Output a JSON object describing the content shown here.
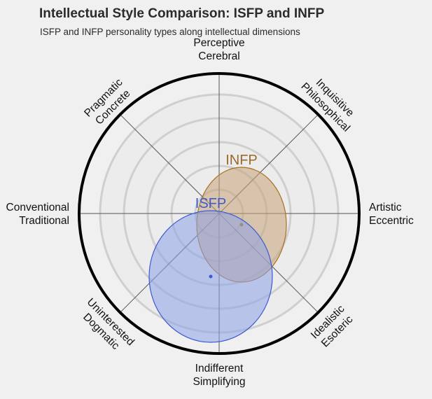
{
  "chart_data": {
    "type": "scatter",
    "title": "Intellectual Style Comparison: ISFP and INFP",
    "subtitle": "ISFP and INFP personality types along intellectual dimensions",
    "rings": 5,
    "grid": true,
    "axes": [
      {
        "angle": 90,
        "lines": [
          "Perceptive",
          "Cerebral"
        ]
      },
      {
        "angle": 45,
        "lines": [
          "Inquisitive",
          "Philosophical"
        ]
      },
      {
        "angle": 0,
        "lines": [
          "Artistic",
          "Eccentric"
        ]
      },
      {
        "angle": -45,
        "lines": [
          "Idealistic",
          "Esoteric"
        ]
      },
      {
        "angle": -90,
        "lines": [
          "Indifferent",
          "Simplifying"
        ]
      },
      {
        "angle": -135,
        "lines": [
          "Uninterested",
          "Dogmatic"
        ]
      },
      {
        "angle": 180,
        "lines": [
          "Conventional",
          "Traditional"
        ]
      },
      {
        "angle": 135,
        "lines": [
          "Pragmatic",
          "Concrete"
        ]
      }
    ],
    "series": [
      {
        "name": "INFP",
        "x": 0.16,
        "y": -0.08,
        "rx": 0.32,
        "ry": 0.41,
        "fill": "#c8a379",
        "stroke": "#a8711f",
        "label_color": "#9a6a2c"
      },
      {
        "name": "ISFP",
        "x": -0.06,
        "y": -0.45,
        "rx": 0.44,
        "ry": 0.47,
        "fill": "#8ea2e8",
        "stroke": "#3a5bd1",
        "label_color": "#3d5cc9"
      }
    ]
  }
}
